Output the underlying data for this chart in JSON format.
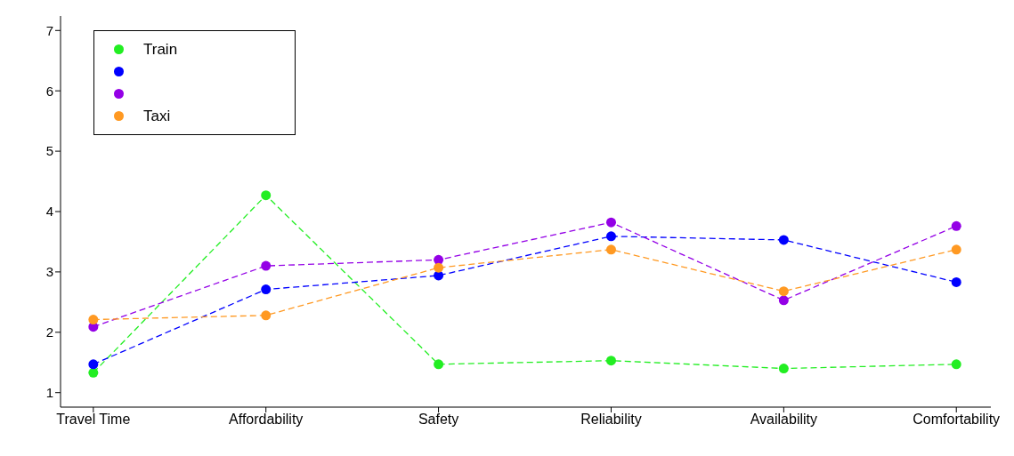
{
  "chart_data": {
    "type": "line",
    "categories": [
      "Travel Time",
      "Affordability",
      "Safety",
      "Reliability",
      "Availability",
      "Comfortability"
    ],
    "series": [
      {
        "name": "Train",
        "color": "#22ee22",
        "values": [
          1.33,
          4.27,
          1.47,
          1.53,
          1.4,
          1.47
        ]
      },
      {
        "color": "#0000ff",
        "values": [
          1.47,
          2.71,
          2.94,
          3.59,
          3.53,
          2.83
        ]
      },
      {
        "color": "#9400e6",
        "values": [
          2.09,
          3.1,
          3.2,
          3.82,
          2.53,
          3.76
        ]
      },
      {
        "name": "Taxi",
        "color": "#ff9922",
        "values": [
          2.21,
          2.28,
          3.07,
          3.37,
          2.68,
          3.37
        ]
      }
    ],
    "ylim": [
      0.76,
      7.24
    ],
    "yticks": [
      1,
      2,
      3,
      4,
      5,
      6,
      7
    ],
    "grid": false,
    "legend": "top left",
    "marker": "circle",
    "line_style": "dashed"
  }
}
